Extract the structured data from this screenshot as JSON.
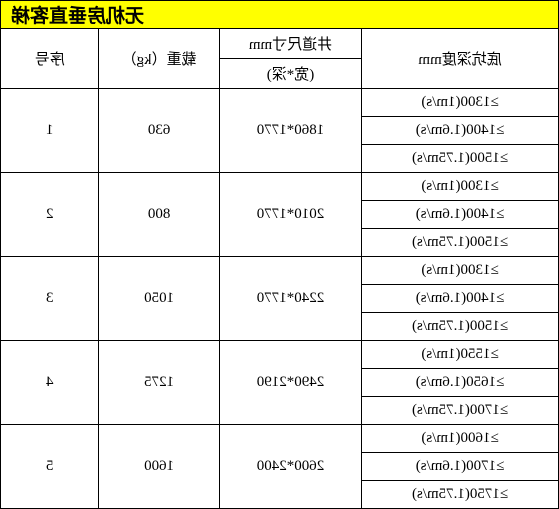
{
  "title": "无机房垂直客梯",
  "headers": {
    "depth": "底坑深度mm",
    "shaft_top": "井道尺寸mm",
    "shaft_sub": "(宽*深)",
    "load": "载重（kg）",
    "seq": "序号"
  },
  "rows": [
    {
      "seq": "1",
      "load": "630",
      "shaft": "1860*1770",
      "depths": [
        "≥1300(1m/s)",
        "≥1400(1.6m/s)",
        "≥1500(1.75m/s)"
      ]
    },
    {
      "seq": "2",
      "load": "800",
      "shaft": "2010*1770",
      "depths": [
        "≥1300(1m/s)",
        "≥1400(1.6m/s)",
        "≥1500(1.75m/s)"
      ]
    },
    {
      "seq": "3",
      "load": "1050",
      "shaft": "2240*1770",
      "depths": [
        "≥1300(1m/s)",
        "≥1400(1.6m/s)",
        "≥1500(1.75m/s)"
      ]
    },
    {
      "seq": "4",
      "load": "1275",
      "shaft": "2490*2190",
      "depths": [
        "≥1550(1m/s)",
        "≥1650(1.6m/s)",
        "≥1700(1.75m/s)"
      ]
    },
    {
      "seq": "5",
      "load": "1600",
      "shaft": "2600*2400",
      "depths": [
        "≥1600(1m/s)",
        "≥1700(1.6m/s)",
        "≥1750(1.75m/s)"
      ]
    }
  ],
  "colors": {
    "title_bg": "#ffff00",
    "border": "#000000",
    "bg": "#ffffff"
  }
}
